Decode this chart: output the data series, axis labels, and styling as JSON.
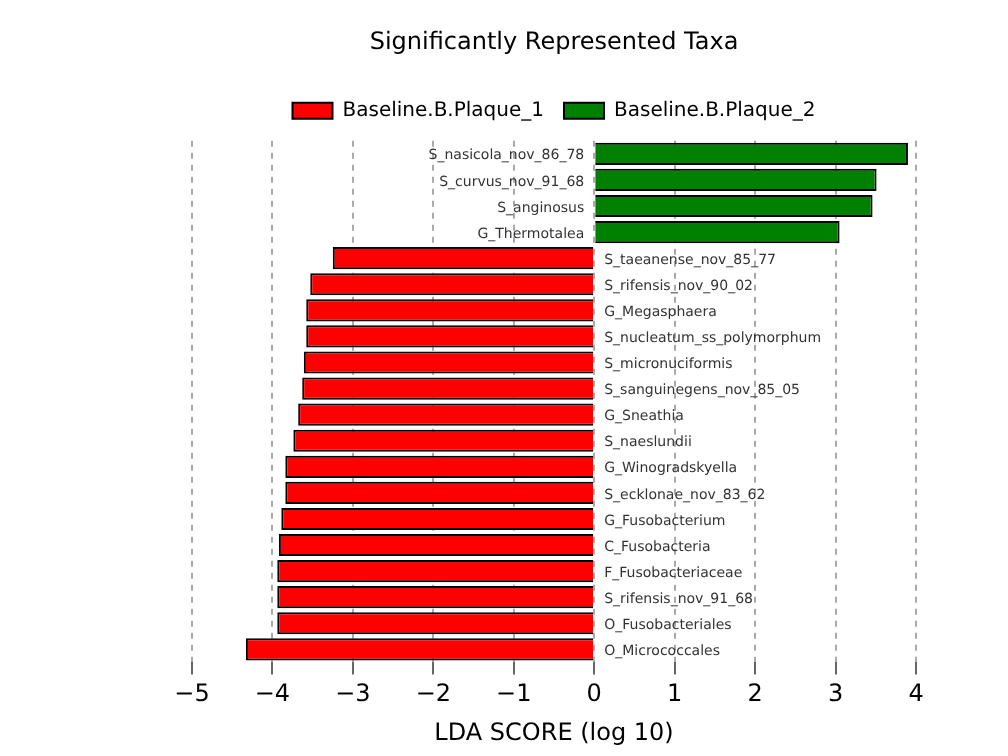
{
  "chart_data": {
    "type": "bar",
    "orientation": "horizontal",
    "title": "Significantly Represented Taxa",
    "xlabel": "LDA SCORE (log 10)",
    "categories": [
      "S_nasicola_nov_86_78",
      "S_curvus_nov_91_68",
      "S_anginosus",
      "G_Thermotalea",
      "S_taeanense_nov_85_77",
      "S_rifensis_nov_90_02",
      "G_Megasphaera",
      "S_nucleatum_ss_polymorphum",
      "S_micronuciformis",
      "S_sanguinegens_nov_85_05",
      "G_Sneathia",
      "S_naeslundii",
      "G_Winogradskyella",
      "S_ecklonae_nov_83_62",
      "G_Fusobacterium",
      "C_Fusobacteria",
      "F_Fusobacteriaceae",
      "S_rifensis_nov_91_68",
      "O_Fusobacteriales",
      "O_Micrococcales"
    ],
    "series": [
      {
        "name": "Baseline.B.Plaque_1",
        "color": "#ff0000",
        "values": [
          null,
          null,
          null,
          null,
          -3.25,
          -3.53,
          -3.58,
          -3.58,
          -3.61,
          -3.63,
          -3.68,
          -3.74,
          -3.84,
          -3.84,
          -3.89,
          -3.92,
          -3.94,
          -3.94,
          -3.94,
          -4.33
        ]
      },
      {
        "name": "Baseline.B.Plaque_2",
        "color": "#008000",
        "values": [
          3.9,
          3.51,
          3.46,
          3.05,
          null,
          null,
          null,
          null,
          null,
          null,
          null,
          null,
          null,
          null,
          null,
          null,
          null,
          null,
          null,
          null
        ]
      }
    ],
    "xlim": [
      -5,
      4
    ],
    "xticks": [
      -5,
      -4,
      -3,
      -2,
      -1,
      0,
      1,
      2,
      3,
      4
    ],
    "grid": "x",
    "legend": "top"
  }
}
